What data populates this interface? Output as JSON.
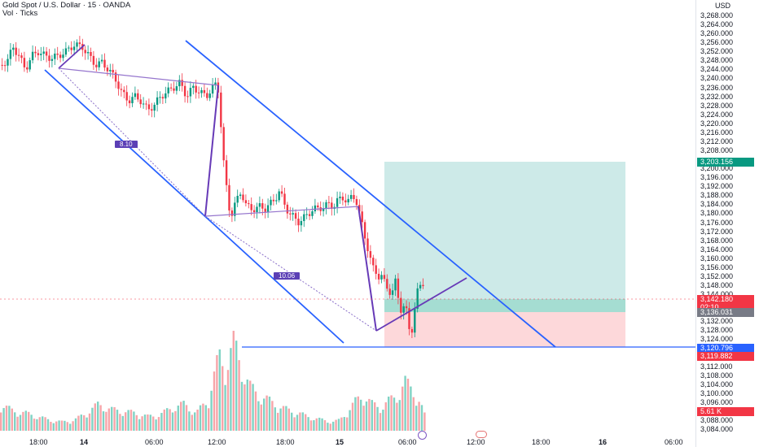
{
  "header": {
    "title": "Gold Spot / U.S. Dollar · 15 · OANDA",
    "volume_label": "Vol · Ticks"
  },
  "axis": {
    "currency": "USD",
    "ticks": [
      "3,268.000",
      "3,264.000",
      "3,260.000",
      "3,256.000",
      "3,252.000",
      "3,248.000",
      "3,244.000",
      "3,240.000",
      "3,236.000",
      "3,232.000",
      "3,228.000",
      "3,224.000",
      "3,220.000",
      "3,216.000",
      "3,212.000",
      "3,208.000",
      "3,200.000",
      "3,196.000",
      "3,192.000",
      "3,188.000",
      "3,184.000",
      "3,180.000",
      "3,176.000",
      "3,172.000",
      "3,168.000",
      "3,164.000",
      "3,160.000",
      "3,156.000",
      "3,152.000",
      "3,148.000",
      "3,144.000",
      "3,132.000",
      "3,128.000",
      "3,124.000",
      "3,116.000",
      "3,112.000",
      "3,108.000",
      "3,104.000",
      "3,100.000",
      "3,096.000",
      "3,088.000",
      "3,084.000"
    ]
  },
  "price_tags": {
    "target": {
      "value": "3,203.156",
      "color": "#089981"
    },
    "current": {
      "value": "3,142.180",
      "timer": "02:10",
      "color": "#f23645"
    },
    "entry": {
      "value": "3,136.031",
      "color": "#787b86"
    },
    "blue_line": {
      "value": "3,120.796",
      "color": "#2962ff"
    },
    "stop": {
      "value": "3,119.882",
      "color": "#f23645"
    },
    "volume": {
      "value": "5.61 K",
      "color": "#f23645"
    }
  },
  "time_axis": [
    "18:00",
    "14",
    "06:00",
    "12:00",
    "18:00",
    "15",
    "06:00",
    "12:00",
    "18:00",
    "16",
    "06:00"
  ],
  "annotations": {
    "fib_upper": "8.10",
    "fib_lower": "10.06"
  },
  "colors": {
    "up": "#089981",
    "down": "#f23645",
    "channel": "#2962ff",
    "pattern": "#673ab7",
    "profit_zone": "#b2dfdb",
    "loss_zone": "#fccbcd"
  },
  "chart_data": {
    "type": "candlestick",
    "symbol": "Gold Spot / U.S. Dollar",
    "interval": "15",
    "ylim": [
      3082,
      3270
    ],
    "close_path": [
      [
        0,
        3246
      ],
      [
        8,
        3248
      ],
      [
        15,
        3254
      ],
      [
        22,
        3250
      ],
      [
        30,
        3244
      ],
      [
        38,
        3250
      ],
      [
        46,
        3252
      ],
      [
        54,
        3250
      ],
      [
        62,
        3249
      ],
      [
        70,
        3250
      ],
      [
        80,
        3252
      ],
      [
        90,
        3255
      ],
      [
        100,
        3254
      ],
      [
        108,
        3250
      ],
      [
        116,
        3246
      ],
      [
        124,
        3247
      ],
      [
        132,
        3244
      ],
      [
        140,
        3240
      ],
      [
        148,
        3234
      ],
      [
        156,
        3230
      ],
      [
        164,
        3232
      ],
      [
        172,
        3230
      ],
      [
        180,
        3226
      ],
      [
        188,
        3228
      ],
      [
        196,
        3232
      ],
      [
        204,
        3234
      ],
      [
        212,
        3236
      ],
      [
        220,
        3238
      ],
      [
        228,
        3232
      ],
      [
        236,
        3236
      ],
      [
        244,
        3234
      ],
      [
        252,
        3232
      ],
      [
        260,
        3236
      ],
      [
        266,
        3238
      ],
      [
        270,
        3220
      ],
      [
        274,
        3200
      ],
      [
        278,
        3188
      ],
      [
        282,
        3178
      ],
      [
        286,
        3183
      ],
      [
        290,
        3186
      ],
      [
        295,
        3190
      ],
      [
        300,
        3184
      ],
      [
        306,
        3182
      ],
      [
        312,
        3182
      ],
      [
        318,
        3183
      ],
      [
        324,
        3182
      ],
      [
        330,
        3184
      ],
      [
        336,
        3186
      ],
      [
        342,
        3190
      ],
      [
        348,
        3184
      ],
      [
        354,
        3180
      ],
      [
        360,
        3178
      ],
      [
        366,
        3176
      ],
      [
        372,
        3178
      ],
      [
        378,
        3180
      ],
      [
        384,
        3182
      ],
      [
        390,
        3182
      ],
      [
        396,
        3183
      ],
      [
        402,
        3184
      ],
      [
        408,
        3183
      ],
      [
        414,
        3186
      ],
      [
        420,
        3187
      ],
      [
        426,
        3185
      ],
      [
        432,
        3188
      ],
      [
        436,
        3186
      ],
      [
        440,
        3180
      ],
      [
        444,
        3174
      ],
      [
        448,
        3168
      ],
      [
        452,
        3162
      ],
      [
        456,
        3156
      ],
      [
        460,
        3154
      ],
      [
        464,
        3152
      ],
      [
        468,
        3152
      ],
      [
        472,
        3148
      ],
      [
        476,
        3146
      ],
      [
        480,
        3144
      ],
      [
        484,
        3150
      ],
      [
        488,
        3142
      ],
      [
        492,
        3136
      ],
      [
        496,
        3140
      ],
      [
        500,
        3132
      ],
      [
        503,
        3124
      ],
      [
        506,
        3132
      ],
      [
        509,
        3140
      ],
      [
        512,
        3146
      ],
      [
        515,
        3148
      ],
      [
        518,
        3150
      ],
      [
        521,
        3142
      ]
    ],
    "volume": [
      [
        0,
        0.3
      ],
      [
        15,
        0.22
      ],
      [
        30,
        0.2
      ],
      [
        45,
        0.16
      ],
      [
        60,
        0.12
      ],
      [
        75,
        0.1
      ],
      [
        90,
        0.12
      ],
      [
        105,
        0.2
      ],
      [
        120,
        0.3
      ],
      [
        135,
        0.24
      ],
      [
        150,
        0.22
      ],
      [
        165,
        0.2
      ],
      [
        180,
        0.16
      ],
      [
        195,
        0.18
      ],
      [
        210,
        0.26
      ],
      [
        225,
        0.3
      ],
      [
        240,
        0.2
      ],
      [
        255,
        0.36
      ],
      [
        268,
        0.85
      ],
      [
        276,
        0.7
      ],
      [
        286,
        1.0
      ],
      [
        296,
        0.7
      ],
      [
        306,
        0.5
      ],
      [
        316,
        0.4
      ],
      [
        326,
        0.36
      ],
      [
        336,
        0.3
      ],
      [
        346,
        0.26
      ],
      [
        356,
        0.22
      ],
      [
        366,
        0.2
      ],
      [
        376,
        0.16
      ],
      [
        386,
        0.14
      ],
      [
        396,
        0.12
      ],
      [
        406,
        0.1
      ],
      [
        416,
        0.12
      ],
      [
        426,
        0.22
      ],
      [
        436,
        0.34
      ],
      [
        446,
        0.4
      ],
      [
        456,
        0.3
      ],
      [
        466,
        0.26
      ],
      [
        476,
        0.34
      ],
      [
        486,
        0.38
      ],
      [
        496,
        0.56
      ],
      [
        506,
        0.44
      ],
      [
        514,
        0.34
      ],
      [
        520,
        0.18
      ]
    ],
    "volume_max": 5.61
  }
}
